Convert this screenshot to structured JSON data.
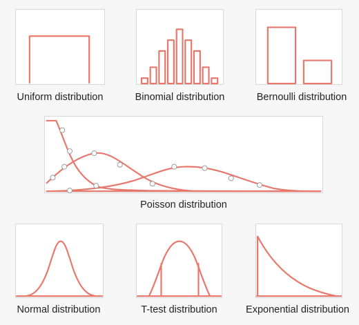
{
  "accent_color": "#e8766a",
  "captions": {
    "uniform": "Uniform distribution",
    "binomial": "Binomial distribution",
    "bernoulli": "Bernoulli distribution",
    "poisson": "Poisson distribution",
    "normal": "Normal distribution",
    "ttest": "T-test distribution",
    "exponential": "Exponential distribution"
  },
  "binomial": {
    "bars": [
      1,
      3,
      6,
      8,
      10,
      8,
      6,
      3,
      1
    ]
  },
  "bernoulli": {
    "bars": [
      1.0,
      0.41
    ]
  }
}
